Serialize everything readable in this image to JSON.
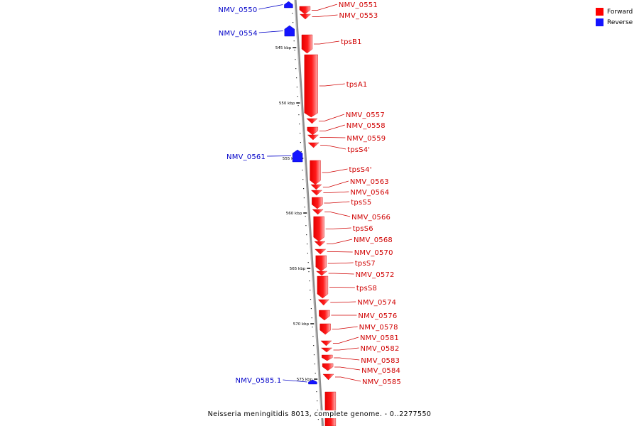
{
  "legend": {
    "forward_label": "Forward",
    "reverse_label": "Reverse",
    "forward_color": "#ff0000",
    "reverse_color": "#1414ff"
  },
  "caption": "Neisseria meningitidis 8013, complete genome. - 0..2277550",
  "colors": {
    "backbone": "#8c8c8c",
    "forward_label": "#d00000",
    "reverse_label": "#0000c8",
    "tick": "#000000"
  },
  "ruler": [
    "545 kbp",
    "550 kbp",
    "555 kbp",
    "560 kbp",
    "565 kbp",
    "570 kbp",
    "575 kbp"
  ],
  "features": [
    {
      "label": "NMV_0550",
      "strand": "reverse",
      "kind": "arrow"
    },
    {
      "label": "NMV_0551",
      "strand": "forward",
      "kind": "block"
    },
    {
      "label": "NMV_0553",
      "strand": "forward",
      "kind": "arrow"
    },
    {
      "label": "NMV_0554",
      "strand": "reverse",
      "kind": "arrow"
    },
    {
      "label": "tpsB1",
      "strand": "forward",
      "kind": "block"
    },
    {
      "label": "tpsA1",
      "strand": "forward",
      "kind": "block"
    },
    {
      "label": "NMV_0557",
      "strand": "forward",
      "kind": "arrow"
    },
    {
      "label": "NMV_0558",
      "strand": "forward",
      "kind": "block"
    },
    {
      "label": "NMV_0559",
      "strand": "forward",
      "kind": "arrow"
    },
    {
      "label": "tpsS4'",
      "strand": "forward",
      "kind": "arrow"
    },
    {
      "label": "NMV_0561",
      "strand": "reverse",
      "kind": "arrow"
    },
    {
      "label": "tpsS4'",
      "strand": "forward",
      "kind": "block"
    },
    {
      "label": "NMV_0563",
      "strand": "forward",
      "kind": "arrow"
    },
    {
      "label": "NMV_0564",
      "strand": "forward",
      "kind": "arrow"
    },
    {
      "label": "tpsS5",
      "strand": "forward",
      "kind": "block"
    },
    {
      "label": "NMV_0566",
      "strand": "forward",
      "kind": "arrow"
    },
    {
      "label": "tpsS6",
      "strand": "forward",
      "kind": "block"
    },
    {
      "label": "NMV_0568",
      "strand": "forward",
      "kind": "arrow"
    },
    {
      "label": "NMV_0570",
      "strand": "forward",
      "kind": "arrow"
    },
    {
      "label": "tpsS7",
      "strand": "forward",
      "kind": "block"
    },
    {
      "label": "NMV_0572",
      "strand": "forward",
      "kind": "arrow"
    },
    {
      "label": "tpsS8",
      "strand": "forward",
      "kind": "block"
    },
    {
      "label": "NMV_0574",
      "strand": "forward",
      "kind": "arrow"
    },
    {
      "label": "NMV_0576",
      "strand": "forward",
      "kind": "block"
    },
    {
      "label": "NMV_0578",
      "strand": "forward",
      "kind": "block"
    },
    {
      "label": "NMV_0581",
      "strand": "forward",
      "kind": "arrow"
    },
    {
      "label": "NMV_0582",
      "strand": "forward",
      "kind": "arrow"
    },
    {
      "label": "NMV_0583",
      "strand": "forward",
      "kind": "block"
    },
    {
      "label": "NMV_0584",
      "strand": "forward",
      "kind": "block"
    },
    {
      "label": "NMV_0585",
      "strand": "forward",
      "kind": "arrow"
    },
    {
      "label": "NMV_0585.1",
      "strand": "reverse",
      "kind": "arrow"
    }
  ]
}
